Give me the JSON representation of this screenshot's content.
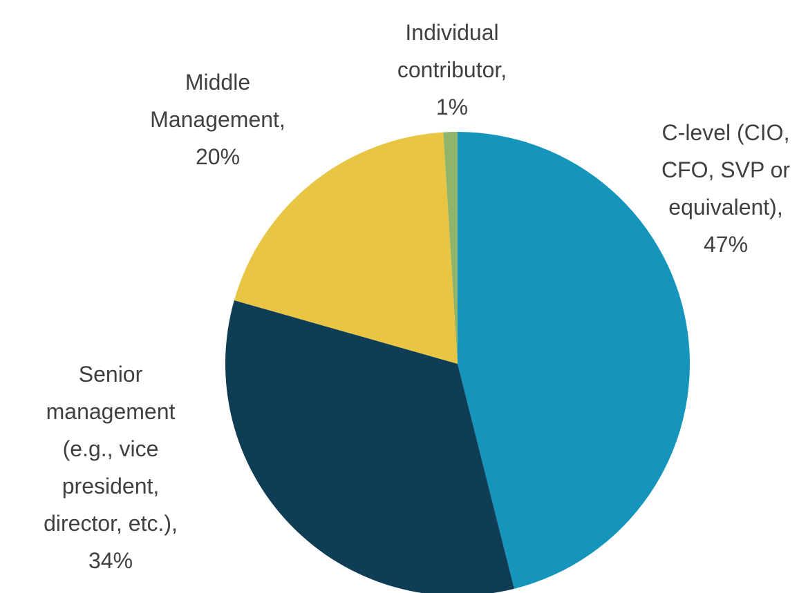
{
  "chart_data": {
    "type": "pie",
    "categories": [
      "C-level (CIO, CFO, SVP or equivalent),",
      "Senior management (e.g., vice president, director, etc.),",
      "Middle Management,",
      "Individual contributor,"
    ],
    "values": [
      47,
      34,
      20,
      1
    ],
    "value_labels": [
      "47%",
      "34%",
      "20%",
      "1%"
    ],
    "colors": [
      "#1595bb",
      "#0e3d55",
      "#e8c543",
      "#8fb56a"
    ]
  }
}
